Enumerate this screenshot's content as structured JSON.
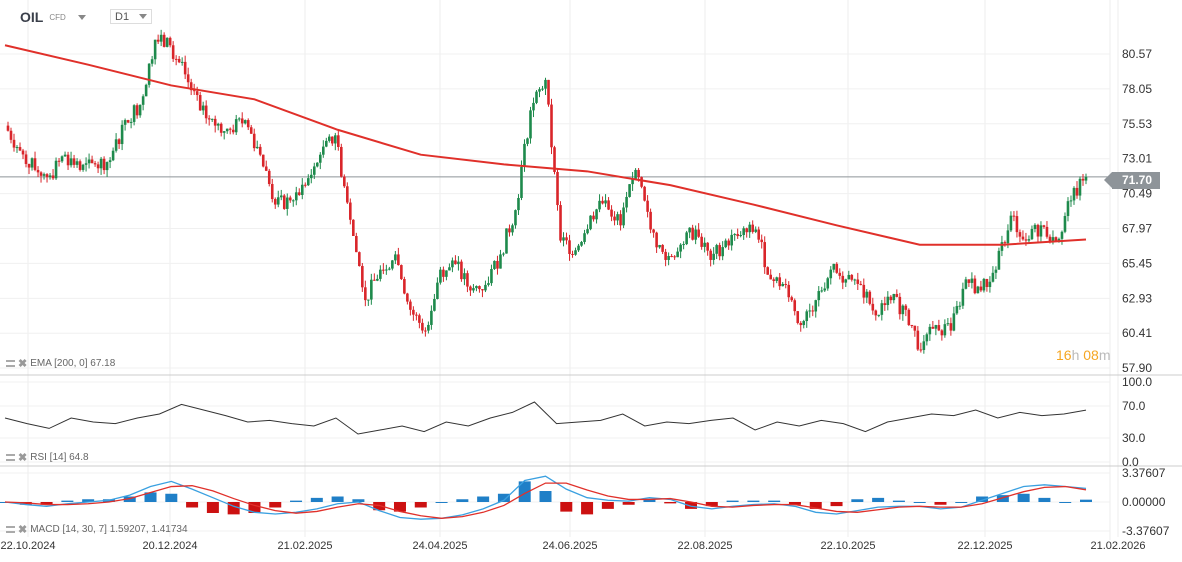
{
  "header": {
    "symbol": "OIL",
    "type": "CFD",
    "timeframe": "D1"
  },
  "timer": {
    "hours": "16",
    "h": "h",
    "minutes": "08",
    "m": "m"
  },
  "current_price": "71.70",
  "indicators": {
    "ema": "EMA [200, 0] 67.18",
    "rsi": "RSI [14] 64.8",
    "macd": "MACD [14, 30, 7] 1.59207, 1.41734"
  },
  "colors": {
    "up": "#1e8a4c",
    "down": "#d9252a",
    "ema": "#e0302a",
    "rsi": "#333333",
    "macd": "#3aa0e0",
    "signal": "#e0302a",
    "hist_pos": "#1f7fc7",
    "hist_neg": "#cc1111",
    "price_tag": "#8e9499",
    "timer": "#f5a623"
  },
  "chart_data": [
    {
      "type": "candlestick",
      "title": "OIL",
      "ylim": [
        57.9,
        80.57
      ],
      "yticks": [
        "80.57",
        "78.05",
        "75.53",
        "73.01",
        "70.49",
        "67.97",
        "65.45",
        "62.93",
        "60.41",
        "57.90"
      ],
      "xticks": [
        "22.10.2024",
        "20.12.2024",
        "21.02.2025",
        "24.04.2025",
        "24.06.2025",
        "22.08.2025",
        "22.10.2025",
        "22.12.2025",
        "21.02.2026"
      ],
      "close": [
        75.4,
        73.6,
        72.2,
        71.8,
        73.3,
        72.2,
        72.6,
        72.9,
        75.8,
        76.9,
        81.6,
        81.2,
        79.1,
        76.5,
        75.4,
        75.1,
        75.8,
        73.3,
        69.7,
        70.0,
        71.1,
        73.3,
        74.7,
        68.6,
        62.8,
        65.0,
        66.1,
        62.1,
        60.6,
        65.0,
        65.4,
        63.5,
        63.9,
        66.1,
        69.3,
        76.5,
        78.7,
        67.1,
        66.4,
        68.9,
        70.0,
        68.2,
        72.2,
        67.9,
        65.7,
        66.8,
        67.9,
        65.7,
        67.1,
        67.5,
        67.9,
        64.3,
        63.9,
        61.0,
        62.8,
        65.0,
        64.3,
        63.9,
        61.7,
        62.8,
        62.1,
        59.2,
        61.0,
        60.6,
        64.3,
        63.5,
        65.0,
        68.9,
        67.1,
        68.2,
        67.1,
        70.0,
        71.7
      ],
      "ema200": [
        81.2,
        79.8,
        78.3,
        77.3,
        75.1,
        73.3,
        72.6,
        72.1,
        71.1,
        69.7,
        68.2,
        66.8,
        66.8,
        67.18
      ],
      "last": 71.7
    },
    {
      "type": "line",
      "name": "RSI",
      "ylim": [
        0,
        100
      ],
      "yticks": [
        "100.0",
        "70.0",
        "30.0",
        "0.0"
      ],
      "values": [
        55,
        48,
        42,
        55,
        50,
        48,
        55,
        60,
        72,
        65,
        58,
        50,
        52,
        48,
        45,
        55,
        35,
        40,
        45,
        38,
        50,
        45,
        55,
        62,
        75,
        48,
        50,
        52,
        60,
        45,
        50,
        48,
        52,
        55,
        40,
        50,
        45,
        52,
        48,
        38,
        50,
        55,
        60,
        58,
        65,
        55,
        62,
        58,
        60,
        64.8
      ]
    },
    {
      "type": "line+bar",
      "name": "MACD",
      "ylim": [
        -3.37607,
        3.37607
      ],
      "yticks": [
        "3.37607",
        "0.00000",
        "-3.37607"
      ],
      "macd": [
        0,
        -0.3,
        -0.5,
        -0.2,
        0,
        0.2,
        0.8,
        1.8,
        2.4,
        1.5,
        0.5,
        -0.5,
        -1.2,
        -1.4,
        -1.2,
        -0.8,
        -0.2,
        0,
        -1.0,
        -1.8,
        -2.0,
        -1.9,
        -1.5,
        -0.8,
        0.2,
        2.5,
        3.0,
        1.5,
        0.5,
        0.2,
        0.1,
        0.5,
        0.3,
        -0.5,
        -0.8,
        -0.5,
        -0.3,
        -0.2,
        -0.5,
        -1.2,
        -1.4,
        -1.0,
        -0.6,
        -0.5,
        -0.5,
        -0.8,
        -0.6,
        0.2,
        1.0,
        1.8,
        2.0,
        1.8,
        1.59
      ],
      "signal": [
        0,
        -0.1,
        -0.3,
        -0.3,
        -0.2,
        0,
        0.4,
        1.1,
        1.8,
        1.9,
        1.3,
        0.4,
        -0.4,
        -1.0,
        -1.3,
        -1.1,
        -0.6,
        -0.2,
        -0.4,
        -1.1,
        -1.6,
        -1.9,
        -1.7,
        -1.2,
        -0.4,
        1.0,
        2.2,
        2.2,
        1.4,
        0.7,
        0.3,
        0.3,
        0.4,
        0.0,
        -0.5,
        -0.6,
        -0.4,
        -0.3,
        -0.3,
        -0.7,
        -1.1,
        -1.2,
        -0.9,
        -0.6,
        -0.5,
        -0.6,
        -0.6,
        -0.2,
        0.5,
        1.2,
        1.7,
        1.8,
        1.42
      ]
    }
  ]
}
